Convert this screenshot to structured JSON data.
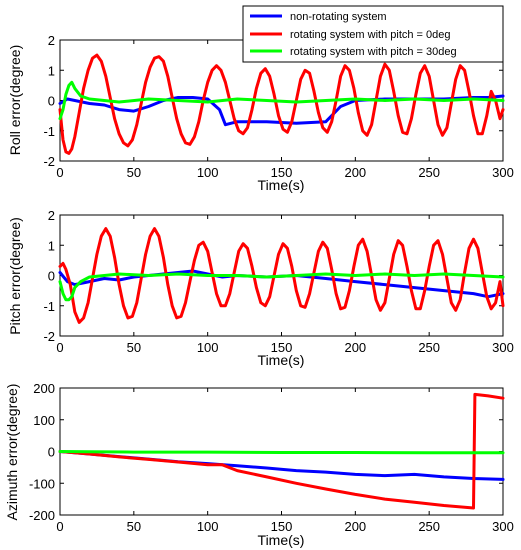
{
  "chart_data": [
    {
      "type": "line",
      "xlabel": "Time(s)",
      "ylabel": "Roll error(degree)",
      "xlim": [
        0,
        300
      ],
      "ylim": [
        -2,
        2
      ],
      "xticks": [
        "0",
        "50",
        "100",
        "150",
        "200",
        "250",
        "300"
      ],
      "yticks": [
        "-2",
        "-1",
        "0",
        "1",
        "2"
      ],
      "xtick_values": [
        0,
        50,
        100,
        150,
        200,
        250,
        300
      ],
      "ytick_values": [
        -2,
        -1,
        0,
        1,
        2
      ],
      "grid": false,
      "legend": "top-right",
      "series": [
        {
          "name": "non-rotating system",
          "color": "#0000ff",
          "x": [
            0,
            5,
            10,
            20,
            30,
            40,
            50,
            60,
            70,
            80,
            90,
            100,
            108,
            112,
            120,
            140,
            160,
            180,
            190,
            200,
            220,
            240,
            260,
            280,
            290,
            300
          ],
          "y": [
            -0.1,
            0.05,
            0.0,
            -0.1,
            -0.15,
            -0.3,
            -0.35,
            -0.2,
            0.0,
            0.1,
            0.1,
            0.05,
            -0.3,
            -0.8,
            -0.7,
            -0.7,
            -0.75,
            -0.7,
            -0.2,
            0.0,
            0.05,
            0.05,
            0.05,
            0.1,
            0.1,
            0.15
          ]
        },
        {
          "name": "rotating system with pitch = 0deg",
          "color": "#ff0000",
          "x": [
            0,
            2,
            4,
            6,
            8,
            10,
            13,
            16,
            19,
            22,
            25,
            28,
            31,
            34,
            37,
            40,
            43,
            46,
            49,
            52,
            55,
            58,
            61,
            64,
            67,
            70,
            73,
            76,
            79,
            82,
            85,
            88,
            91,
            94,
            97,
            100,
            103,
            106,
            109,
            112,
            115,
            118,
            121,
            124,
            127,
            130,
            133,
            136,
            139,
            142,
            145,
            148,
            151,
            154,
            157,
            160,
            163,
            166,
            169,
            172,
            175,
            178,
            181,
            184,
            187,
            190,
            193,
            196,
            199,
            202,
            205,
            208,
            211,
            214,
            217,
            220,
            223,
            226,
            229,
            232,
            235,
            238,
            241,
            244,
            247,
            250,
            253,
            256,
            259,
            262,
            265,
            268,
            271,
            274,
            277,
            280,
            283,
            286,
            289,
            292,
            295,
            298,
            300
          ],
          "y": [
            -0.3,
            -1.3,
            -1.7,
            -1.75,
            -1.6,
            -1.2,
            -0.4,
            0.4,
            1.0,
            1.4,
            1.5,
            1.3,
            0.8,
            0.1,
            -0.6,
            -1.1,
            -1.4,
            -1.5,
            -1.3,
            -0.8,
            -0.1,
            0.6,
            1.1,
            1.4,
            1.45,
            1.3,
            0.8,
            0.1,
            -0.6,
            -1.1,
            -1.4,
            -1.45,
            -1.2,
            -0.7,
            0.0,
            0.6,
            1.0,
            1.15,
            1.0,
            0.6,
            0.0,
            -0.6,
            -1.0,
            -1.1,
            -0.9,
            -0.3,
            0.4,
            0.9,
            1.05,
            0.8,
            0.2,
            -0.5,
            -0.95,
            -1.05,
            -0.7,
            0.0,
            0.7,
            1.0,
            0.9,
            0.3,
            -0.4,
            -0.9,
            -1.05,
            -0.7,
            0.0,
            0.8,
            1.15,
            1.0,
            0.4,
            -0.4,
            -1.0,
            -1.15,
            -0.8,
            0.0,
            0.8,
            1.2,
            1.0,
            0.3,
            -0.5,
            -1.05,
            -1.1,
            -0.6,
            0.2,
            0.9,
            1.15,
            0.8,
            0.0,
            -0.8,
            -1.15,
            -0.9,
            -0.1,
            0.7,
            1.15,
            1.0,
            0.3,
            -0.5,
            -1.1,
            -1.1,
            -0.5,
            0.3,
            0.0,
            -0.6,
            -0.3
          ]
        },
        {
          "name": "rotating system with pitch = 30deg",
          "color": "#00ff00",
          "x": [
            0,
            2,
            4,
            6,
            8,
            10,
            14,
            20,
            30,
            40,
            60,
            80,
            100,
            120,
            140,
            160,
            180,
            200,
            220,
            240,
            260,
            280,
            300
          ],
          "y": [
            -0.6,
            -0.3,
            0.2,
            0.5,
            0.6,
            0.4,
            0.15,
            0.05,
            0.0,
            -0.05,
            0.05,
            0.0,
            -0.05,
            0.05,
            0.0,
            -0.05,
            0.0,
            0.05,
            0.0,
            0.05,
            0.0,
            0.05,
            0.0
          ]
        }
      ]
    },
    {
      "type": "line",
      "xlabel": "Time(s)",
      "ylabel": "Pitch error(degree)",
      "xlim": [
        0,
        300
      ],
      "ylim": [
        -2,
        2
      ],
      "xticks": [
        "0",
        "50",
        "100",
        "150",
        "200",
        "250",
        "300"
      ],
      "yticks": [
        "-2",
        "-1",
        "0",
        "1",
        "2"
      ],
      "xtick_values": [
        0,
        50,
        100,
        150,
        200,
        250,
        300
      ],
      "ytick_values": [
        -2,
        -1,
        0,
        1,
        2
      ],
      "grid": false,
      "series": [
        {
          "name": "non-rotating system",
          "color": "#0000ff",
          "x": [
            0,
            5,
            10,
            20,
            30,
            40,
            50,
            60,
            70,
            80,
            90,
            100,
            110,
            120,
            140,
            160,
            180,
            200,
            220,
            240,
            260,
            280,
            290,
            300
          ],
          "y": [
            0.1,
            -0.2,
            -0.3,
            -0.2,
            -0.1,
            -0.15,
            -0.05,
            0.0,
            0.05,
            0.1,
            0.15,
            0.05,
            -0.05,
            0.0,
            -0.05,
            0.0,
            -0.1,
            -0.2,
            -0.3,
            -0.4,
            -0.5,
            -0.6,
            -0.7,
            -0.6
          ]
        },
        {
          "name": "rotating system with pitch = 0deg",
          "color": "#ff0000",
          "x": [
            0,
            2,
            4,
            7,
            10,
            13,
            16,
            19,
            22,
            25,
            28,
            31,
            34,
            37,
            40,
            43,
            46,
            49,
            52,
            55,
            58,
            61,
            64,
            67,
            70,
            73,
            76,
            79,
            82,
            85,
            88,
            91,
            94,
            97,
            100,
            103,
            106,
            109,
            112,
            115,
            118,
            121,
            124,
            127,
            130,
            133,
            136,
            139,
            142,
            145,
            148,
            151,
            154,
            157,
            160,
            163,
            166,
            169,
            172,
            175,
            178,
            181,
            184,
            187,
            190,
            193,
            196,
            199,
            202,
            205,
            208,
            211,
            214,
            217,
            220,
            223,
            226,
            229,
            232,
            235,
            238,
            241,
            244,
            247,
            250,
            253,
            256,
            259,
            262,
            265,
            268,
            271,
            274,
            277,
            280,
            283,
            286,
            289,
            292,
            295,
            298,
            300
          ],
          "y": [
            0.3,
            0.4,
            0.2,
            -0.3,
            -1.2,
            -1.55,
            -1.4,
            -0.9,
            -0.1,
            0.7,
            1.3,
            1.55,
            1.3,
            0.6,
            -0.3,
            -1.0,
            -1.4,
            -1.35,
            -0.9,
            -0.1,
            0.7,
            1.3,
            1.55,
            1.3,
            0.6,
            -0.3,
            -1.0,
            -1.4,
            -1.35,
            -0.9,
            -0.2,
            0.5,
            1.0,
            1.1,
            0.8,
            0.1,
            -0.6,
            -1.0,
            -1.0,
            -0.6,
            0.1,
            0.8,
            1.05,
            0.9,
            0.3,
            -0.4,
            -0.9,
            -1.0,
            -0.7,
            0.0,
            0.7,
            1.05,
            0.9,
            0.3,
            -0.5,
            -1.0,
            -1.05,
            -0.6,
            0.1,
            0.8,
            1.1,
            0.9,
            0.2,
            -0.6,
            -1.1,
            -1.05,
            -0.5,
            0.3,
            1.0,
            1.2,
            0.8,
            0.0,
            -0.8,
            -1.15,
            -0.9,
            -0.1,
            0.7,
            1.15,
            1.0,
            0.3,
            -0.5,
            -1.1,
            -1.1,
            -0.5,
            0.3,
            1.0,
            1.15,
            0.7,
            -0.1,
            -0.9,
            -1.15,
            -0.8,
            0.1,
            0.9,
            1.2,
            0.9,
            0.1,
            -0.7,
            -1.1,
            -0.9,
            -0.2,
            -1.0
          ]
        },
        {
          "name": "rotating system with pitch = 30deg",
          "color": "#00ff00",
          "x": [
            0,
            2,
            4,
            6,
            8,
            10,
            14,
            20,
            30,
            40,
            60,
            80,
            100,
            120,
            140,
            160,
            180,
            200,
            220,
            240,
            260,
            280,
            300
          ],
          "y": [
            -0.2,
            -0.6,
            -0.8,
            -0.8,
            -0.7,
            -0.4,
            -0.2,
            -0.05,
            0.0,
            0.05,
            0.0,
            0.05,
            0.0,
            0.0,
            -0.05,
            0.0,
            0.05,
            0.0,
            0.05,
            0.0,
            0.05,
            0.0,
            -0.05
          ]
        }
      ]
    },
    {
      "type": "line",
      "xlabel": "Time(s)",
      "ylabel": "Azimuth error(degree)",
      "xlim": [
        0,
        300
      ],
      "ylim": [
        -200,
        200
      ],
      "xticks": [
        "0",
        "50",
        "100",
        "150",
        "200",
        "250",
        "300"
      ],
      "yticks": [
        "-200",
        "-100",
        "0",
        "100",
        "200"
      ],
      "xtick_values": [
        0,
        50,
        100,
        150,
        200,
        250,
        300
      ],
      "ytick_values": [
        -200,
        -100,
        0,
        100,
        200
      ],
      "grid": false,
      "series": [
        {
          "name": "non-rotating system",
          "color": "#0000ff",
          "x": [
            0,
            20,
            40,
            60,
            80,
            100,
            120,
            140,
            160,
            180,
            200,
            220,
            240,
            260,
            280,
            300
          ],
          "y": [
            0,
            -8,
            -16,
            -24,
            -32,
            -38,
            -45,
            -52,
            -60,
            -65,
            -72,
            -76,
            -72,
            -80,
            -85,
            -88
          ]
        },
        {
          "name": "rotating system with pitch = 0deg",
          "color": "#ff0000",
          "x": [
            0,
            20,
            40,
            60,
            80,
            100,
            110,
            120,
            140,
            160,
            180,
            200,
            220,
            240,
            260,
            280,
            281,
            290,
            300
          ],
          "y": [
            0,
            -8,
            -17,
            -25,
            -33,
            -42,
            -42,
            -60,
            -80,
            -100,
            -118,
            -135,
            -150,
            -160,
            -170,
            -178,
            180,
            175,
            168
          ]
        },
        {
          "name": "rotating system with pitch = 30deg",
          "color": "#00ff00",
          "x": [
            0,
            20,
            50,
            100,
            150,
            200,
            250,
            300
          ],
          "y": [
            0,
            -1,
            -2,
            -2,
            -3,
            -3,
            -4,
            -4
          ]
        }
      ]
    }
  ]
}
